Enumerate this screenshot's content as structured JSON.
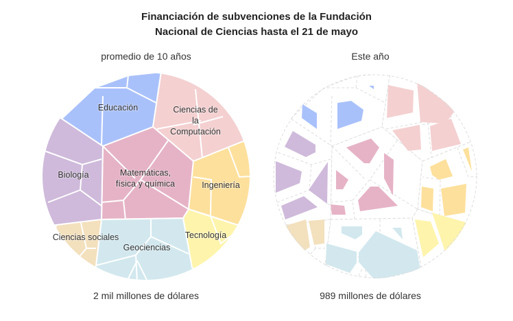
{
  "chart_data": {
    "type": "voronoi-treemap",
    "title": "Financiación de subvenciones de la Fundación Nacional de Ciencias hasta el 21 de mayo",
    "title_lines": [
      "Financiación de subvenciones de la Fundación",
      "Nacional de Ciencias hasta el 21 de mayo"
    ],
    "panels": [
      {
        "subtitle": "promedio de 10 años",
        "total_label": "2 mil millones de dólares"
      },
      {
        "subtitle": "Este año",
        "total_label": "989 millones de dólares"
      }
    ],
    "categories": [
      {
        "id": "edu",
        "label_lines": [
          "Educación"
        ],
        "color": "#a9c1fb"
      },
      {
        "id": "cs",
        "label_lines": [
          "Ciencias de",
          "la",
          "Computación"
        ],
        "color": "#f4d0d1"
      },
      {
        "id": "math",
        "label_lines": [
          "Matemáticas,",
          "física y química"
        ],
        "color": "#e6b3c6"
      },
      {
        "id": "bio",
        "label_lines": [
          "Biología"
        ],
        "color": "#cfbadb"
      },
      {
        "id": "eng",
        "label_lines": [
          "Ingeniería"
        ],
        "color": "#fde09c"
      },
      {
        "id": "tech",
        "label_lines": [
          "Tecnología"
        ],
        "color": "#fef4ac"
      },
      {
        "id": "soc",
        "label_lines": [
          "Ciencias sociales"
        ],
        "color": "#f3e0bd"
      },
      {
        "id": "geo",
        "label_lines": [
          "Geociencias"
        ],
        "color": "#d2e8ee"
      }
    ]
  }
}
